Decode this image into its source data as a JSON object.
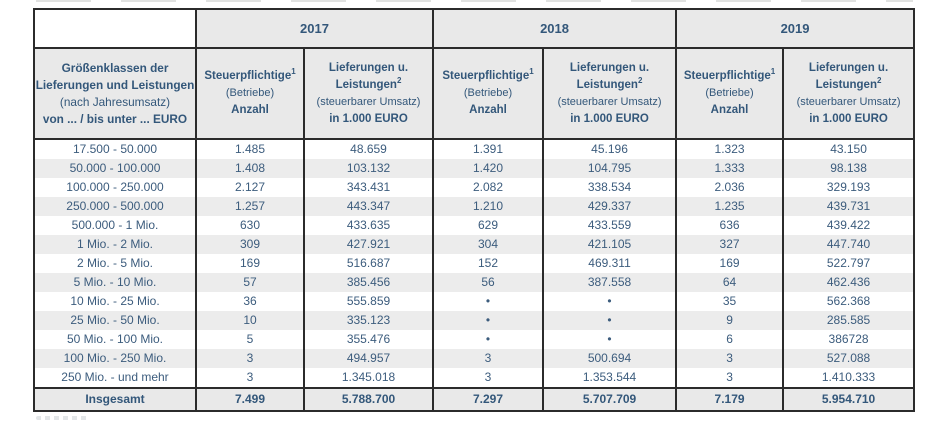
{
  "table": {
    "years": [
      "2017",
      "2018",
      "2019"
    ],
    "dimension_header": {
      "line1": "Größenklassen der",
      "line2": "Lieferungen und Leistungen",
      "line3": "(nach Jahresumsatz)",
      "line4": "von ... / bis unter ... EURO"
    },
    "taxpayers_header": {
      "title": "Steuerpflichtige",
      "footnote": "1",
      "subtitle": "(Betriebe)",
      "unit": "Anzahl"
    },
    "deliveries_header": {
      "title_line1": "Lieferungen u.",
      "title_line2": "Leistungen",
      "footnote": "2",
      "subtitle": "(steuerbarer Umsatz)",
      "unit": "in 1.000 EURO"
    },
    "rows": [
      {
        "label": "17.500 - 50.000",
        "values": [
          "1.485",
          "48.659",
          "1.391",
          "45.196",
          "1.323",
          "43.150"
        ]
      },
      {
        "label": "50.000 - 100.000",
        "values": [
          "1.408",
          "103.132",
          "1.420",
          "104.795",
          "1.333",
          "98.138"
        ]
      },
      {
        "label": "100.000 - 250.000",
        "values": [
          "2.127",
          "343.431",
          "2.082",
          "338.534",
          "2.036",
          "329.193"
        ]
      },
      {
        "label": "250.000 - 500.000",
        "values": [
          "1.257",
          "443.347",
          "1.210",
          "429.337",
          "1.235",
          "439.731"
        ]
      },
      {
        "label": "500.000 - 1 Mio.",
        "values": [
          "630",
          "433.635",
          "629",
          "433.559",
          "636",
          "439.422"
        ]
      },
      {
        "label": "1 Mio. - 2 Mio.",
        "values": [
          "309",
          "427.921",
          "304",
          "421.105",
          "327",
          "447.740"
        ]
      },
      {
        "label": "2 Mio. - 5 Mio.",
        "values": [
          "169",
          "516.687",
          "152",
          "469.311",
          "169",
          "522.797"
        ]
      },
      {
        "label": "5 Mio. - 10 Mio.",
        "values": [
          "57",
          "385.456",
          "56",
          "387.558",
          "64",
          "462.436"
        ]
      },
      {
        "label": "10 Mio. - 25 Mio.",
        "values": [
          "36",
          "555.859",
          "•",
          "•",
          "35",
          "562.368"
        ]
      },
      {
        "label": "25 Mio. - 50 Mio.",
        "values": [
          "10",
          "335.123",
          "•",
          "•",
          "9",
          "285.585"
        ]
      },
      {
        "label": "50 Mio. - 100 Mio.",
        "values": [
          "5",
          "355.476",
          "•",
          "•",
          "6",
          "386728"
        ]
      },
      {
        "label": "100 Mio. - 250 Mio.",
        "values": [
          "3",
          "494.957",
          "3",
          "500.694",
          "3",
          "527.088"
        ]
      },
      {
        "label": "250 Mio. - und mehr",
        "values": [
          "3",
          "1.345.018",
          "3",
          "1.353.544",
          "3",
          "1.410.333"
        ]
      }
    ],
    "total": {
      "label": "Insgesamt",
      "values": [
        "7.499",
        "5.788.700",
        "7.297",
        "5.707.709",
        "7.179",
        "5.954.710"
      ]
    }
  },
  "colors": {
    "text": "#3c5c7d",
    "header_text": "#33577a",
    "header_bg": "#e9e9e9",
    "stripe_bg": "#ececec",
    "border": "#2b2b2b"
  }
}
